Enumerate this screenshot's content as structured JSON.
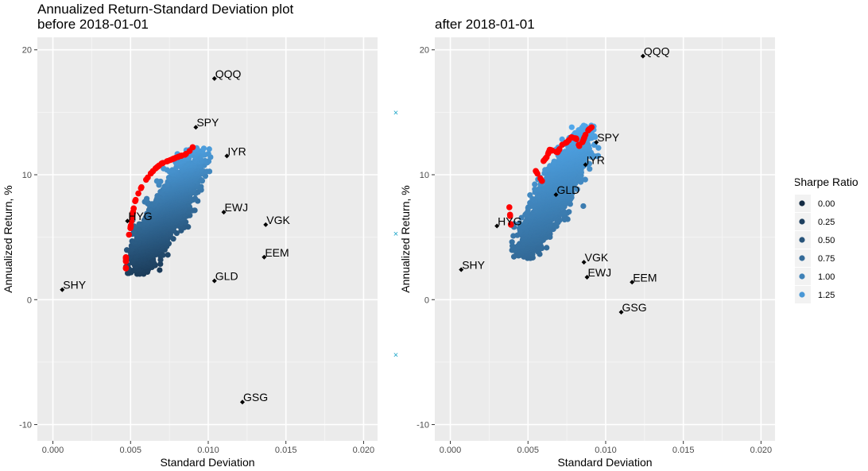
{
  "colors": {
    "panel_bg": "#EBEBEB",
    "grid_major": "#FFFFFF",
    "optimal": "#FF0000",
    "ticker_point": "#000000",
    "marker_x": "#1FA6C9",
    "sharpe_low": "#132B43",
    "sharpe_high": "#56B1F7"
  },
  "chart_data": [
    {
      "type": "scatter",
      "title_line1": "Annualized Return-Standard Deviation plot",
      "title_line2": "before 2018-01-01",
      "xlabel": "Standard Deviation",
      "ylabel": "Annualized Return, %",
      "xlim": [
        -0.001,
        0.0209
      ],
      "ylim": [
        -11.3,
        21.0
      ],
      "xticks": [
        "0.000",
        "0.005",
        "0.010",
        "0.015",
        "0.020"
      ],
      "xtick_values": [
        0,
        0.005,
        0.01,
        0.015,
        0.02
      ],
      "yticks": [
        "-10",
        "0",
        "10",
        "20"
      ],
      "ytick_values": [
        -10,
        0,
        10,
        20
      ],
      "grid": true,
      "portfolio_cloud": {
        "center": [
          0.0073,
          6.9
        ],
        "spread": [
          0.00105,
          2.15
        ],
        "rho": 0.84,
        "std_range": [
          0.0047,
          0.0102
        ],
        "return_range": [
          2.0,
          12.3
        ],
        "sharpe_range": [
          0.0,
          1.3
        ]
      },
      "optimal_frontier": [
        [
          0.0047,
          2.5
        ],
        [
          0.0047,
          3.4
        ],
        [
          0.0049,
          5.2
        ],
        [
          0.005,
          5.8
        ],
        [
          0.0051,
          6.6
        ],
        [
          0.0052,
          7.3
        ],
        [
          0.0053,
          7.9
        ],
        [
          0.0055,
          8.5
        ],
        [
          0.0057,
          9.0
        ],
        [
          0.006,
          9.6
        ],
        [
          0.0063,
          10.1
        ],
        [
          0.0066,
          10.5
        ],
        [
          0.007,
          10.9
        ],
        [
          0.0074,
          11.1
        ],
        [
          0.0078,
          11.3
        ],
        [
          0.0082,
          11.5
        ],
        [
          0.0085,
          11.6
        ],
        [
          0.0088,
          11.9
        ],
        [
          0.009,
          12.2
        ]
      ],
      "tickers": [
        {
          "name": "QQQ",
          "std": 0.0104,
          "ret": 17.7
        },
        {
          "name": "SPY",
          "std": 0.0092,
          "ret": 13.8
        },
        {
          "name": "IYR",
          "std": 0.0112,
          "ret": 11.5
        },
        {
          "name": "EWJ",
          "std": 0.011,
          "ret": 7.0
        },
        {
          "name": "VGK",
          "std": 0.0137,
          "ret": 6.0
        },
        {
          "name": "HYG",
          "std": 0.0048,
          "ret": 6.3
        },
        {
          "name": "EEM",
          "std": 0.0136,
          "ret": 3.4
        },
        {
          "name": "GLD",
          "std": 0.0104,
          "ret": 1.5
        },
        {
          "name": "SHY",
          "std": 0.0006,
          "ret": 0.8
        },
        {
          "name": "GSG",
          "std": 0.0122,
          "ret": -8.2
        }
      ]
    },
    {
      "type": "scatter",
      "title_line1": "",
      "title_line2": "after 2018-01-01",
      "xlabel": "Standard Deviation",
      "ylabel": "Annualized Return, %",
      "xlim": [
        -0.001,
        0.0209
      ],
      "ylim": [
        -11.3,
        21.0
      ],
      "xticks": [
        "0.000",
        "0.005",
        "0.010",
        "0.015",
        "0.020"
      ],
      "xtick_values": [
        0,
        0.005,
        0.01,
        0.015,
        0.02
      ],
      "yticks": [
        "-10",
        "0",
        "10",
        "20"
      ],
      "ytick_values": [
        -10,
        0,
        10,
        20
      ],
      "grid": true,
      "portfolio_cloud": {
        "center": [
          0.0066,
          8.3
        ],
        "spread": [
          0.0011,
          2.35
        ],
        "rho": 0.88,
        "std_range": [
          0.0039,
          0.0097
        ],
        "return_range": [
          3.3,
          14.0
        ],
        "sharpe_range": [
          0.5,
          1.3
        ]
      },
      "optimal_frontier": [
        [
          0.0039,
          6.0
        ],
        [
          0.0038,
          7.4
        ],
        [
          0.0055,
          10.3
        ],
        [
          0.0059,
          9.5
        ],
        [
          0.006,
          11.1
        ],
        [
          0.0062,
          11.4
        ],
        [
          0.0064,
          12.0
        ],
        [
          0.0069,
          11.8
        ],
        [
          0.0072,
          12.4
        ],
        [
          0.0075,
          12.6
        ],
        [
          0.0078,
          13.0
        ],
        [
          0.0081,
          12.9
        ],
        [
          0.0083,
          12.3
        ],
        [
          0.0085,
          12.6
        ],
        [
          0.0087,
          13.2
        ],
        [
          0.0089,
          13.6
        ],
        [
          0.0091,
          13.8
        ]
      ],
      "tickers": [
        {
          "name": "QQQ",
          "std": 0.0124,
          "ret": 19.5
        },
        {
          "name": "SPY",
          "std": 0.0094,
          "ret": 12.6
        },
        {
          "name": "IYR",
          "std": 0.0087,
          "ret": 10.8
        },
        {
          "name": "GLD",
          "std": 0.0068,
          "ret": 8.4
        },
        {
          "name": "HYG",
          "std": 0.003,
          "ret": 5.9
        },
        {
          "name": "SHY",
          "std": 0.0007,
          "ret": 2.4
        },
        {
          "name": "VGK",
          "std": 0.0086,
          "ret": 3.0
        },
        {
          "name": "EWJ",
          "std": 0.0088,
          "ret": 1.8
        },
        {
          "name": "EEM",
          "std": 0.0117,
          "ret": 1.4
        },
        {
          "name": "GSG",
          "std": 0.011,
          "ret": -1.0
        }
      ]
    }
  ],
  "stray_markers": [
    {
      "symbol": "×",
      "ret": 15.0
    },
    {
      "symbol": "×",
      "ret": 5.3
    },
    {
      "symbol": "×",
      "ret": -4.4
    }
  ],
  "legend": {
    "title": "Sharpe Ratio",
    "items": [
      {
        "label": "0.00",
        "color": "#132B43"
      },
      {
        "label": "0.25",
        "color": "#1D3F5E"
      },
      {
        "label": "0.50",
        "color": "#28547A"
      },
      {
        "label": "0.75",
        "color": "#336A98"
      },
      {
        "label": "1.00",
        "color": "#3E81B7"
      },
      {
        "label": "1.25",
        "color": "#4A98D6"
      }
    ]
  }
}
